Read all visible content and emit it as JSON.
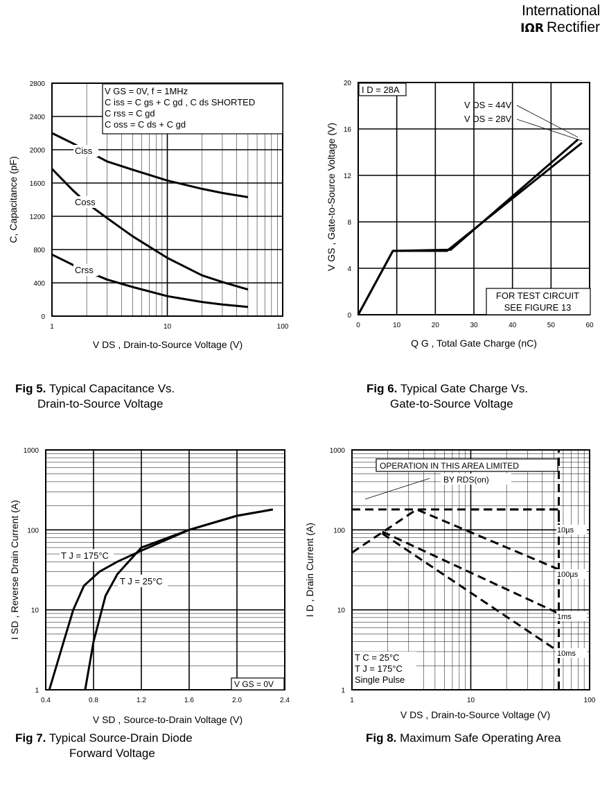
{
  "header": {
    "brand_line1": "International",
    "brand_logo": "IΩR",
    "brand_rectifier": "Rectifier"
  },
  "captions": [
    {
      "fig": "Fig 5.",
      "line1": "Typical Capacitance Vs.",
      "line2": "Drain-to-Source Voltage"
    },
    {
      "fig": "Fig 6.",
      "line1": "Typical Gate Charge Vs.",
      "line2": "Gate-to-Source Voltage"
    },
    {
      "fig": "Fig 7.",
      "line1": "Typical Source-Drain Diode",
      "line2": "Forward Voltage"
    },
    {
      "fig": "Fig 8.",
      "line1": "Maximum Safe Operating Area",
      "line2": ""
    }
  ],
  "chart_data": [
    {
      "id": "fig5",
      "type": "line",
      "xscale": "log",
      "xlim": [
        1,
        100
      ],
      "ylim": [
        0,
        2800
      ],
      "xticks": [
        "1",
        "10",
        "100"
      ],
      "yticks": [
        "0",
        "400",
        "800",
        "1200",
        "1600",
        "2000",
        "2400",
        "2800"
      ],
      "xlabel": "V DS , Drain-to-Source Voltage (V)",
      "ylabel": "C, Capacitance (pF)",
      "annotation": [
        "V GS = 0V,       f = 1MHz",
        "C iss = C gs + C gd ,  C ds SHORTED",
        "C rss = C gd",
        "C oss = C ds + C gd"
      ],
      "series": [
        {
          "name": "Ciss",
          "x": [
            1,
            1.5,
            2,
            3,
            5,
            10,
            20,
            30,
            50
          ],
          "y": [
            2200,
            2080,
            1990,
            1860,
            1760,
            1630,
            1530,
            1480,
            1430
          ]
        },
        {
          "name": "Coss",
          "x": [
            1,
            1.5,
            2,
            3,
            5,
            10,
            20,
            30,
            50
          ],
          "y": [
            1770,
            1520,
            1360,
            1180,
            960,
            700,
            490,
            410,
            320
          ]
        },
        {
          "name": "Crss",
          "x": [
            1,
            1.5,
            2,
            3,
            5,
            10,
            20,
            30,
            50
          ],
          "y": [
            740,
            620,
            540,
            440,
            350,
            240,
            170,
            140,
            110
          ]
        }
      ]
    },
    {
      "id": "fig6",
      "type": "line",
      "xlim": [
        0,
        60
      ],
      "ylim": [
        0,
        20
      ],
      "xticks": [
        "0",
        "10",
        "20",
        "30",
        "40",
        "50",
        "60"
      ],
      "yticks": [
        "0",
        "4",
        "8",
        "12",
        "16",
        "20"
      ],
      "xlabel": "Q G , Total Gate Charge (nC)",
      "ylabel": "V GS , Gate-to-Source Voltage (V)",
      "id_label": "I D = 28A",
      "note": [
        "FOR TEST CIRCUIT",
        "SEE FIGURE 13"
      ],
      "series": [
        {
          "name": "V DS = 44V",
          "x": [
            0,
            9,
            24,
            57
          ],
          "y": [
            0,
            5.5,
            5.6,
            15.1
          ]
        },
        {
          "name": "V DS = 28V",
          "x": [
            0,
            9,
            23,
            58
          ],
          "y": [
            0,
            5.5,
            5.5,
            14.8
          ]
        }
      ]
    },
    {
      "id": "fig7",
      "type": "line",
      "yscale": "log",
      "xlim": [
        0.4,
        2.4
      ],
      "ylim": [
        1,
        1000
      ],
      "xticks": [
        "0.4",
        "0.8",
        "1.2",
        "1.6",
        "2.0",
        "2.4"
      ],
      "yticks": [
        "1",
        "10",
        "100",
        "1000"
      ],
      "xlabel": "V SD , Source-to-Drain Voltage (V)",
      "ylabel": "I SD , Reverse Drain Current (A)",
      "annotation": "V GS = 0V",
      "series": [
        {
          "name": "T J = 175°C",
          "x": [
            0.43,
            0.55,
            0.63,
            0.72,
            0.85,
            1.0,
            1.2,
            1.6,
            2.0,
            2.3
          ],
          "y": [
            1,
            4,
            10,
            20,
            30,
            40,
            55,
            100,
            150,
            180
          ]
        },
        {
          "name": "T J = 25°C",
          "x": [
            0.73,
            0.8,
            0.9,
            1.0,
            1.2,
            1.6,
            2.0,
            2.3
          ],
          "y": [
            1,
            4,
            15,
            28,
            60,
            100,
            150,
            180
          ]
        }
      ]
    },
    {
      "id": "fig8",
      "type": "line",
      "xscale": "log",
      "yscale": "log",
      "xlim": [
        1,
        100
      ],
      "ylim": [
        1,
        1000
      ],
      "xticks": [
        "1",
        "10",
        "100"
      ],
      "yticks": [
        "1",
        "10",
        "100",
        "1000"
      ],
      "xlabel": "V DS , Drain-to-Source Voltage (V)",
      "ylabel": "I D , Drain Current (A)",
      "banner": [
        "OPERATION IN THIS AREA LIMITED",
        "BY RDS(on)"
      ],
      "conditions": [
        "T C   = 25°C",
        "T J   = 175°C",
        "Single Pulse"
      ],
      "series": [
        {
          "name": "10µs",
          "x": [
            1,
            3,
            55
          ],
          "y": [
            180,
            180,
            180
          ]
        },
        {
          "name": "10µs",
          "x": [
            10,
            55,
            55
          ],
          "y": [
            180,
            180,
            120
          ]
        },
        {
          "name": "100µs",
          "x": [
            1,
            3.5,
            55
          ],
          "y": [
            52,
            180,
            32
          ]
        },
        {
          "name": "1ms",
          "x": [
            1.8,
            55
          ],
          "y": [
            95,
            9
          ]
        },
        {
          "name": "10ms",
          "x": [
            1.8,
            55
          ],
          "y": [
            90,
            3
          ]
        },
        {
          "name": "limit",
          "x": [
            55,
            55
          ],
          "y": [
            1,
            1000
          ]
        }
      ],
      "curve_labels": [
        "10µs",
        "100µs",
        "1ms",
        "10ms"
      ]
    }
  ]
}
